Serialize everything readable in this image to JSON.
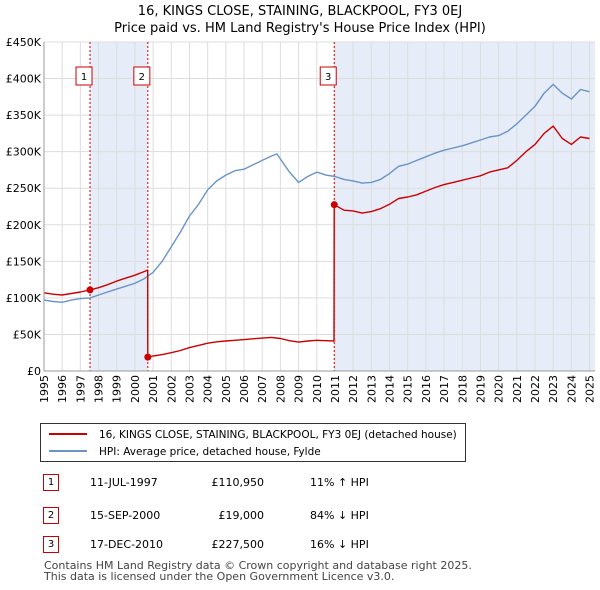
{
  "title": {
    "line1": "16, KINGS CLOSE, STAINING, BLACKPOOL, FY3 0EJ",
    "line2": "Price paid vs. HM Land Registry's House Price Index (HPI)"
  },
  "colors": {
    "price_paid": "#cc0000",
    "hpi": "#6a93c9",
    "shade": "#e6edf8",
    "marker_border": "#cc0000"
  },
  "chart_data": {
    "type": "line",
    "title": "16, KINGS CLOSE, STAINING, BLACKPOOL, FY3 0EJ - Price paid vs. HM Land Registry's House Price Index (HPI)",
    "xlabel": "",
    "ylabel": "",
    "xlim": [
      1995.0,
      2025.3
    ],
    "ylim": [
      0,
      450000
    ],
    "grid": true,
    "y_ticks": [
      0,
      50000,
      100000,
      150000,
      200000,
      250000,
      300000,
      350000,
      400000,
      450000
    ],
    "y_tick_labels": [
      "£0",
      "£50K",
      "£100K",
      "£150K",
      "£200K",
      "£250K",
      "£300K",
      "£350K",
      "£400K",
      "£450K"
    ],
    "x_ticks": [
      1995,
      1996,
      1997,
      1998,
      1999,
      2000,
      2001,
      2002,
      2003,
      2004,
      2005,
      2006,
      2007,
      2008,
      2009,
      2010,
      2011,
      2012,
      2013,
      2014,
      2015,
      2016,
      2017,
      2018,
      2019,
      2020,
      2021,
      2022,
      2023,
      2024,
      2025
    ],
    "x_tick_labels": [
      "1995",
      "1996",
      "1997",
      "1998",
      "1999",
      "2000",
      "2001",
      "2002",
      "2003",
      "2004",
      "2005",
      "2006",
      "2007",
      "2008",
      "2009",
      "2010",
      "2011",
      "2012",
      "2013",
      "2014",
      "2015",
      "2016",
      "2017",
      "2018",
      "2019",
      "2020",
      "2021",
      "2022",
      "2023",
      "2024",
      "2025"
    ],
    "shaded_ranges": [
      [
        1997.53,
        2000.71
      ],
      [
        2010.96,
        2025.3
      ]
    ],
    "series": [
      {
        "name": "HPI: Average price, detached house, Fylde",
        "x": [
          1995.0,
          1995.5,
          1996.0,
          1996.5,
          1997.0,
          1997.53,
          1998.0,
          1998.5,
          1999.0,
          1999.5,
          2000.0,
          2000.5,
          2001.0,
          2001.5,
          2002.0,
          2002.5,
          2003.0,
          2003.5,
          2004.0,
          2004.5,
          2005.0,
          2005.5,
          2006.0,
          2006.5,
          2007.0,
          2007.5,
          2007.8,
          2008.0,
          2008.5,
          2009.0,
          2009.5,
          2010.0,
          2010.5,
          2011.0,
          2011.5,
          2012.0,
          2012.5,
          2013.0,
          2013.5,
          2014.0,
          2014.5,
          2015.0,
          2015.5,
          2016.0,
          2016.5,
          2017.0,
          2017.5,
          2018.0,
          2018.5,
          2019.0,
          2019.5,
          2020.0,
          2020.5,
          2021.0,
          2021.5,
          2022.0,
          2022.5,
          2023.0,
          2023.5,
          2024.0,
          2024.5,
          2025.0
        ],
        "values": [
          97000,
          95000,
          94000,
          97000,
          99000,
          100000,
          104000,
          108000,
          112000,
          116000,
          120000,
          126000,
          135000,
          150000,
          170000,
          190000,
          212000,
          228000,
          248000,
          260000,
          268000,
          274000,
          276000,
          282000,
          288000,
          294000,
          297000,
          290000,
          272000,
          258000,
          266000,
          272000,
          268000,
          266000,
          262000,
          260000,
          257000,
          258000,
          262000,
          270000,
          280000,
          283000,
          288000,
          293000,
          298000,
          302000,
          305000,
          308000,
          312000,
          316000,
          320000,
          322000,
          328000,
          338000,
          350000,
          362000,
          380000,
          392000,
          380000,
          372000,
          385000,
          382000
        ]
      },
      {
        "name": "16, KINGS CLOSE, STAINING, BLACKPOOL, FY3 0EJ (detached house)",
        "x": [
          1995.0,
          1995.5,
          1996.0,
          1996.5,
          1997.0,
          1997.53,
          1998.0,
          1998.5,
          1999.0,
          1999.5,
          2000.0,
          2000.5,
          2000.7,
          2000.71,
          2001.0,
          2001.5,
          2002.0,
          2002.5,
          2003.0,
          2003.5,
          2004.0,
          2004.5,
          2005.0,
          2005.5,
          2006.0,
          2006.5,
          2007.0,
          2007.5,
          2008.0,
          2008.5,
          2009.0,
          2009.5,
          2010.0,
          2010.5,
          2010.95,
          2010.96,
          2011.5,
          2012.0,
          2012.5,
          2013.0,
          2013.5,
          2014.0,
          2014.5,
          2015.0,
          2015.5,
          2016.0,
          2016.5,
          2017.0,
          2017.5,
          2018.0,
          2018.5,
          2019.0,
          2019.5,
          2020.0,
          2020.5,
          2021.0,
          2021.5,
          2022.0,
          2022.5,
          2023.0,
          2023.5,
          2024.0,
          2024.5,
          2025.0
        ],
        "values": [
          107000,
          105000,
          104000,
          106000,
          108000,
          110950,
          114000,
          118000,
          123000,
          127000,
          131000,
          136000,
          138000,
          19000,
          20500,
          22500,
          25000,
          28000,
          32000,
          35000,
          38000,
          40000,
          41000,
          42000,
          43000,
          44000,
          45000,
          46000,
          44500,
          41500,
          39500,
          41000,
          42000,
          41500,
          41000,
          227500,
          220000,
          219000,
          216000,
          218000,
          222000,
          228000,
          236000,
          238000,
          241000,
          246000,
          251000,
          255000,
          258000,
          261000,
          264000,
          267000,
          272000,
          275000,
          278000,
          288000,
          300000,
          310000,
          325000,
          335000,
          318000,
          310000,
          320000,
          318000
        ]
      }
    ],
    "transactions": [
      {
        "label": "1",
        "x": 1997.53,
        "value": 110950
      },
      {
        "label": "2",
        "x": 2000.71,
        "value": 19000
      },
      {
        "label": "3",
        "x": 2010.96,
        "value": 227500
      }
    ]
  },
  "legend": {
    "items": [
      {
        "label": "16, KINGS CLOSE, STAINING, BLACKPOOL, FY3 0EJ (detached house)"
      },
      {
        "label": "HPI: Average price, detached house, Fylde"
      }
    ]
  },
  "transactions_table": [
    {
      "num": "1",
      "date": "11-JUL-1997",
      "price": "£110,950",
      "hpi": "11% ↑ HPI"
    },
    {
      "num": "2",
      "date": "15-SEP-2000",
      "price": "£19,000",
      "hpi": "84% ↓ HPI"
    },
    {
      "num": "3",
      "date": "17-DEC-2010",
      "price": "£227,500",
      "hpi": "16% ↓ HPI"
    }
  ],
  "footer": {
    "line1": "Contains HM Land Registry data © Crown copyright and database right 2025.",
    "line2": "This data is licensed under the Open Government Licence v3.0."
  }
}
